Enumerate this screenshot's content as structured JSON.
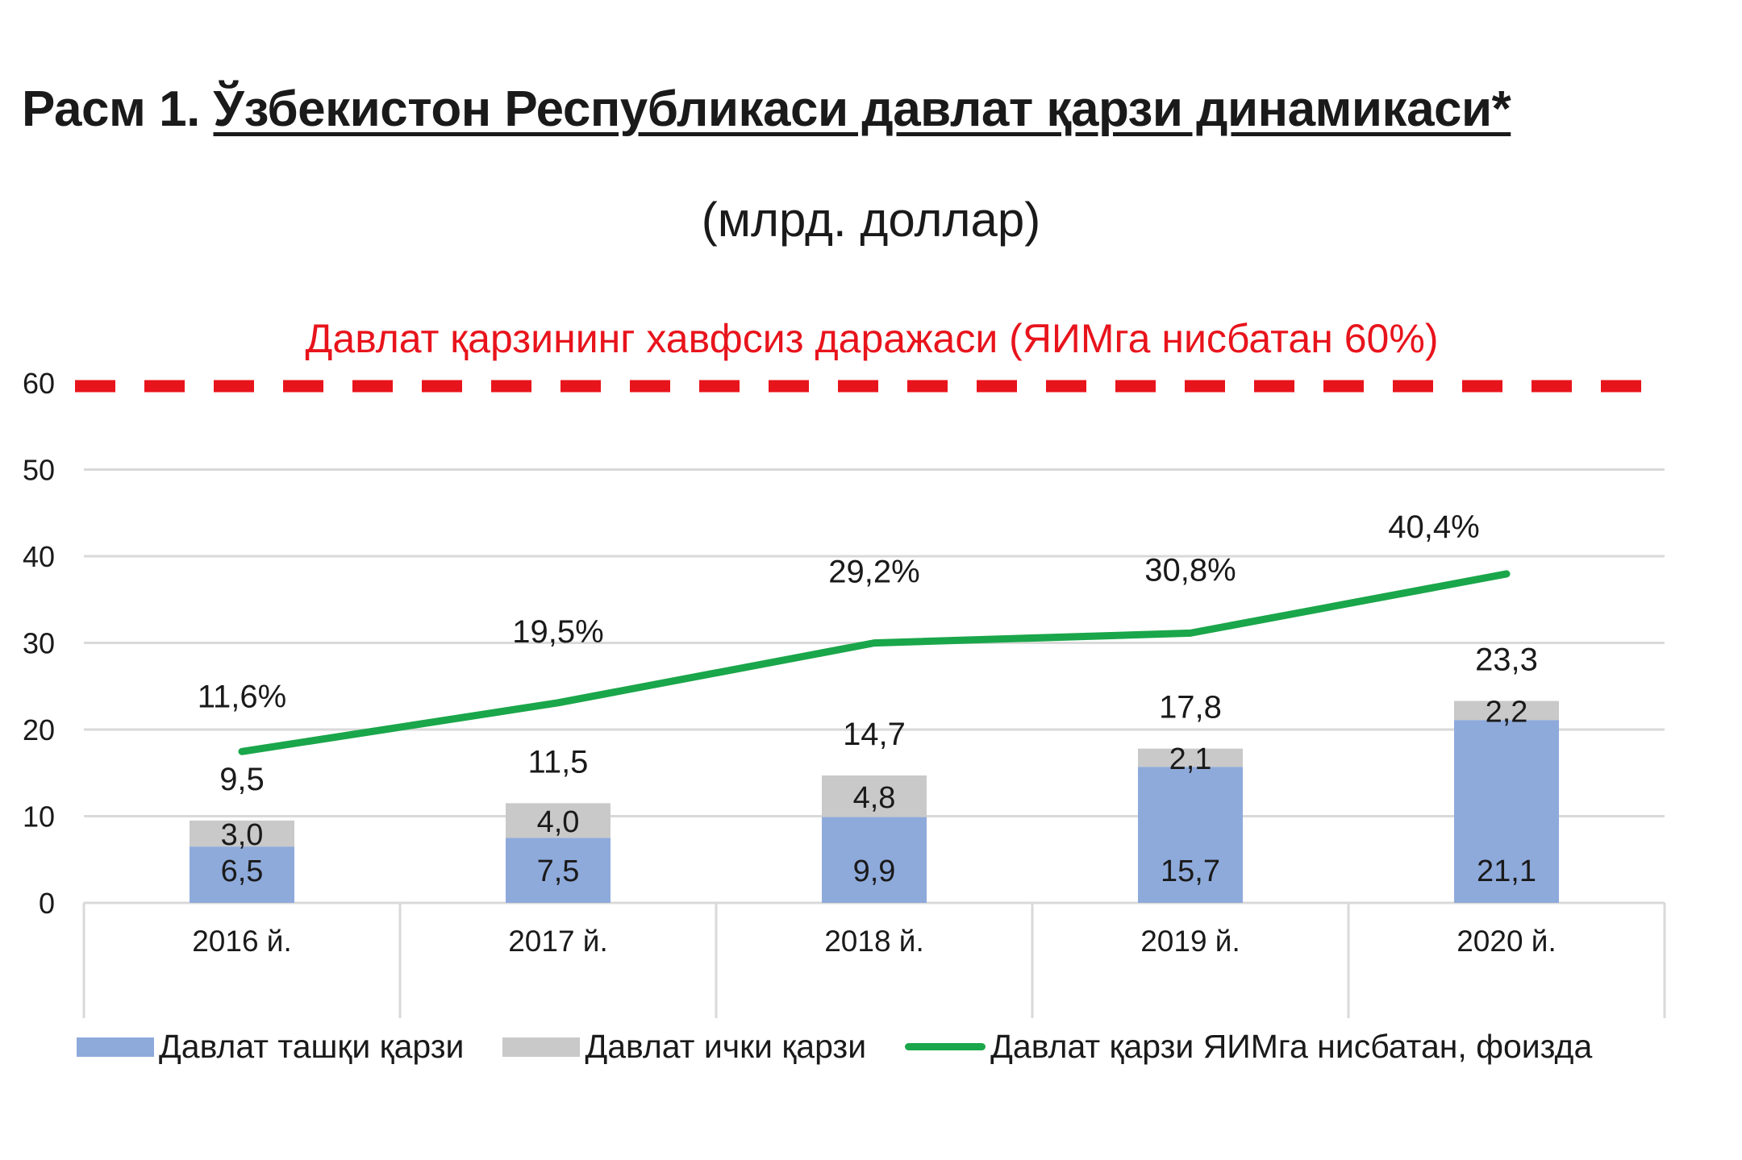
{
  "title": {
    "prefix": "Расм 1. ",
    "main": "Ўзбекистон Республикаси давлат қарзи динамикаси*"
  },
  "subtitle": "(млрд. доллар)",
  "colors": {
    "external": "#8eaadb",
    "internal": "#c9c9c9",
    "gdp_line": "#1aa64a",
    "threshold": "#e8141c",
    "grid": "#d9d9d9",
    "text": "#1a1a1a"
  },
  "legend": {
    "external": "Давлат ташқи қарзи",
    "internal": "Давлат ички қарзи",
    "gdp_ratio": "Давлат қарзи ЯИМга нисбатан, фоизда"
  },
  "chart_data": {
    "type": "bar",
    "stacked": true,
    "title": "Расм 1. Ўзбекистон Республикаси давлат қарзи динамикаси*",
    "subtitle": "(млрд. доллар)",
    "xlabel": "",
    "ylabel": "",
    "ylim": [
      0,
      60
    ],
    "yticks": [
      0,
      10,
      20,
      30,
      40,
      50,
      60
    ],
    "grid": true,
    "legend_position": "bottom",
    "categories": [
      "2016 й.",
      "2017 й.",
      "2018 й.",
      "2019 й.",
      "2020 й."
    ],
    "series": [
      {
        "name": "Давлат ташқи қарзи",
        "type": "bar",
        "values": [
          6.5,
          7.5,
          9.9,
          15.7,
          21.1
        ],
        "labels": [
          "6,5",
          "7,5",
          "9,9",
          "15,7",
          "21,1"
        ]
      },
      {
        "name": "Давлат ички қарзи",
        "type": "bar",
        "values": [
          3.0,
          4.0,
          4.8,
          2.1,
          2.2
        ],
        "labels": [
          "3,0",
          "4,0",
          "4,8",
          "2,1",
          "2,2"
        ]
      },
      {
        "name": "Давлат қарзи ЯИМга нисбатан, фоизда",
        "type": "line",
        "axis": "secondary",
        "values": [
          11.6,
          19.5,
          29.2,
          30.8,
          40.4
        ],
        "labels": [
          "11,6%",
          "19,5%",
          "29,2%",
          "30,8%",
          "40,4%"
        ]
      }
    ],
    "totals": {
      "values": [
        9.5,
        11.5,
        14.7,
        17.8,
        23.3
      ],
      "labels": [
        "9,5",
        "11,5",
        "14,7",
        "17,8",
        "23,3"
      ]
    },
    "annotations": [
      {
        "type": "hline",
        "y": 60,
        "style": "dashed",
        "label": "Давлат қарзининг хавфсиз даражаси (ЯИМга нисбатан 60%)"
      }
    ]
  }
}
